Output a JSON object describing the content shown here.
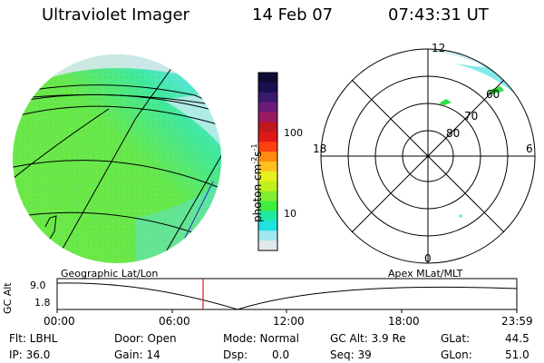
{
  "header": {
    "title": "Ultraviolet Imager",
    "date": "14 Feb 07",
    "time": "07:43:31 UT"
  },
  "colorbar": {
    "unit": "photon cm",
    "unit_exp1": "-2",
    "unit_s": "s",
    "unit_exp2": "-1",
    "tick_100": "100",
    "tick_10": "10",
    "colors": [
      "#0d0d33",
      "#1a1050",
      "#3a1a70",
      "#6a1a78",
      "#9a1a60",
      "#c01820",
      "#e01818",
      "#ff4010",
      "#ff8a10",
      "#ffc020",
      "#e8f020",
      "#c0f020",
      "#80ee30",
      "#40ee40",
      "#20e8a0",
      "#20e0e0",
      "#a0e8f0",
      "#e0e8ec"
    ]
  },
  "polar": {
    "mlt_12": "12",
    "mlt_18": "18",
    "mlt_6": "6",
    "mlt_0": "0",
    "lat_60": "60",
    "lat_70": "70",
    "lat_80": "80"
  },
  "timeline": {
    "left_title": "Geographic Lat/Lon",
    "right_title": "Apex MLat/MLT",
    "axis_label": "GC Alt",
    "ymax": "9.0",
    "ymin": "1.8",
    "ticks": [
      "00:00",
      "06:00",
      "12:00",
      "18:00",
      "23:59"
    ]
  },
  "footer": {
    "flt": "Flt: LBHL",
    "ip": "IP: 36.0",
    "door": "Door: Open",
    "gain": "Gain: 14",
    "mode": "Mode: Normal",
    "dsp": "Dsp:",
    "dsp_val": "0.0",
    "gcalt": "GC Alt: 3.9 Re",
    "seq": "Seq: 39",
    "glat": "GLat:",
    "glat_val": "44.5",
    "glon": "GLon:",
    "glon_val": "51.0"
  }
}
